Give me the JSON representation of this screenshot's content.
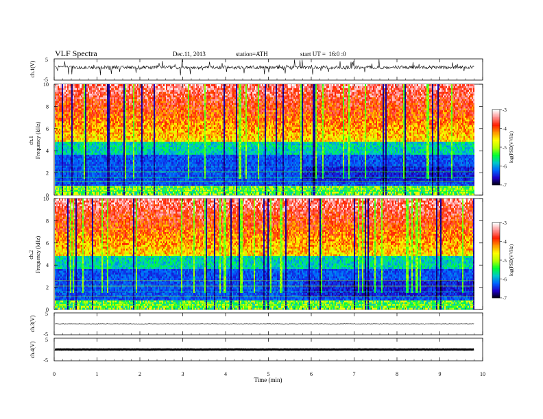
{
  "header": {
    "title": "VLF Spectra",
    "date": "Dec.11, 2013",
    "station": "station=ATH",
    "start": "start UT =  16:0 :0"
  },
  "chart_data": [
    {
      "type": "line",
      "panel": "ch1-waveform",
      "ylabel": "ch.1(V)",
      "yticks": [
        "5",
        "-5"
      ],
      "ylim": [
        -5,
        5
      ],
      "xlim": [
        0,
        10
      ],
      "data_extent_min": 9.8,
      "baseline": 1.0
    },
    {
      "type": "heatmap",
      "panel": "ch1-spectrogram",
      "ylabel": "ch.1\nFrequency (kHz)",
      "ylabel_lines": [
        "ch.1",
        "Frequency (kHz)"
      ],
      "yticks": [
        "0",
        "2",
        "4",
        "6",
        "8",
        "10"
      ],
      "ylim": [
        0,
        10
      ],
      "xlim": [
        0,
        10
      ],
      "colorbar": {
        "label": "log(PSD(V²/Hz)",
        "range": [
          -7,
          -3
        ],
        "ticks": [
          "-3",
          "-4",
          "-5",
          "-6",
          "-7"
        ]
      }
    },
    {
      "type": "heatmap",
      "panel": "ch2-spectrogram",
      "ylabel_lines": [
        "ch.2",
        "Frequency (kHz)"
      ],
      "yticks": [
        "0",
        "2",
        "4",
        "6",
        "8",
        "10"
      ],
      "ylim": [
        0,
        10
      ],
      "xlim": [
        0,
        10
      ],
      "colorbar": {
        "label": "log(PSD(V²/Hz)",
        "range": [
          -7,
          -3
        ],
        "ticks": [
          "-3",
          "-4",
          "-5",
          "-6",
          "-7"
        ]
      }
    },
    {
      "type": "line",
      "panel": "ch3-waveform",
      "ylabel": "ch.3(V)",
      "yticks": [
        "5",
        "-5"
      ],
      "ylim": [
        -5,
        5
      ],
      "baseline": 0.0
    },
    {
      "type": "line",
      "panel": "ch4-waveform",
      "ylabel": "ch.4(V)",
      "yticks": [
        "5",
        "-5"
      ],
      "ylim": [
        -5,
        5
      ],
      "baseline": 0.0
    }
  ],
  "xaxis": {
    "label": "Time (min)",
    "ticks": [
      "0",
      "1",
      "2",
      "3",
      "4",
      "5",
      "6",
      "7",
      "8",
      "9",
      "10"
    ]
  },
  "colors": {
    "spectral": [
      "#000000",
      "#1e00c8",
      "#0064ff",
      "#00c8c8",
      "#00ff32",
      "#b4ff00",
      "#ffff00",
      "#ff9600",
      "#ff1e00",
      "#ff8c8c",
      "#ffffff"
    ]
  }
}
